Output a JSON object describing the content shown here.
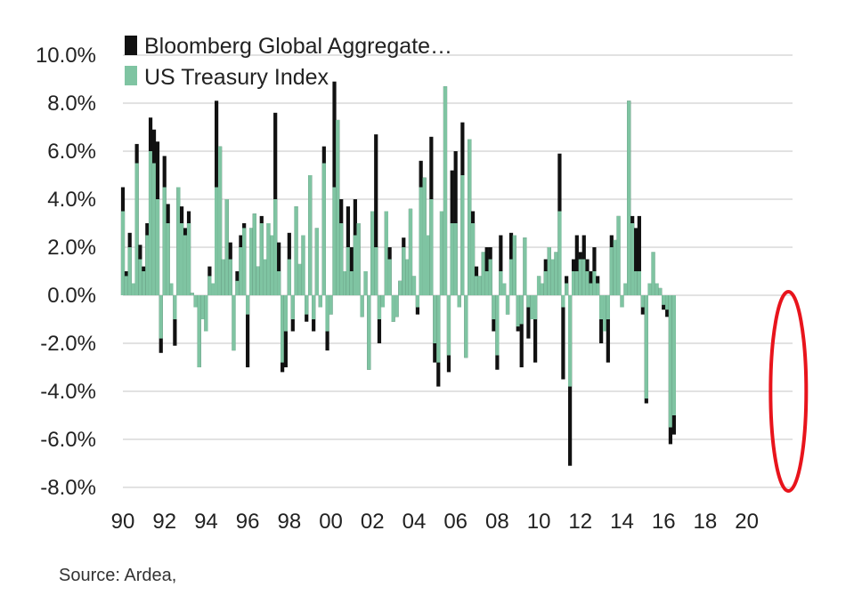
{
  "chart_data": {
    "type": "bar",
    "series": [
      {
        "name": "Bloomberg Global Aggregate…",
        "color": "#111111"
      },
      {
        "name": "US Treasury Index",
        "color": "#7fc4a2"
      }
    ],
    "legend_position": "top-left",
    "ylim": [
      -8,
      10
    ],
    "yticks": [
      10,
      8,
      6,
      4,
      2,
      0,
      -2,
      -4,
      -6,
      -8
    ],
    "ytick_labels": [
      "10.0%",
      "8.0%",
      "6.0%",
      "4.0%",
      "2.0%",
      "0.0%",
      "-2.0%",
      "-4.0%",
      "-6.0%",
      "-8.0%"
    ],
    "xlim": [
      1990,
      2022.2
    ],
    "xticks": [
      1990,
      1992,
      1994,
      1996,
      1998,
      2000,
      2002,
      2004,
      2006,
      2008,
      2010,
      2012,
      2014,
      2016,
      2018,
      2020
    ],
    "xtick_labels": [
      "90",
      "92",
      "94",
      "96",
      "98",
      "00",
      "02",
      "04",
      "06",
      "08",
      "10",
      "12",
      "14",
      "16",
      "18",
      "20"
    ],
    "grid": "horizontal",
    "highlight": {
      "type": "ellipse",
      "color": "#e8141c",
      "x_center": 2022.0,
      "y_range": [
        -8.0,
        0.0
      ]
    },
    "data": [
      [
        1990.0,
        4.5,
        3.5
      ],
      [
        1990.17,
        1.0,
        0.8
      ],
      [
        1990.33,
        2.6,
        2.0
      ],
      [
        1990.5,
        0.5,
        0.5
      ],
      [
        1990.67,
        6.3,
        5.5
      ],
      [
        1990.83,
        2.1,
        1.5
      ],
      [
        1991.0,
        1.2,
        1.0
      ],
      [
        1991.17,
        3.0,
        2.5
      ],
      [
        1991.33,
        7.4,
        6.0
      ],
      [
        1991.5,
        6.9,
        5.5
      ],
      [
        1991.67,
        6.4,
        4.0
      ],
      [
        1991.83,
        -2.4,
        -1.8
      ],
      [
        1992.0,
        5.8,
        4.5
      ],
      [
        1992.17,
        3.8,
        3.0
      ],
      [
        1992.33,
        0.5,
        0.5
      ],
      [
        1992.5,
        -2.1,
        -1.0
      ],
      [
        1992.67,
        4.5,
        4.5
      ],
      [
        1992.83,
        3.7,
        3.0
      ],
      [
        1993.0,
        2.8,
        2.5
      ],
      [
        1993.17,
        3.5,
        3.0
      ],
      [
        1993.33,
        0.1,
        0.1
      ],
      [
        1993.5,
        -0.5,
        -0.5
      ],
      [
        1993.67,
        -3.0,
        -3.0
      ],
      [
        1993.83,
        -1.0,
        -1.0
      ],
      [
        1994.0,
        -1.5,
        -1.5
      ],
      [
        1994.17,
        1.2,
        0.8
      ],
      [
        1994.33,
        0.5,
        0.5
      ],
      [
        1994.5,
        8.1,
        4.5
      ],
      [
        1994.67,
        6.2,
        6.2
      ],
      [
        1994.83,
        1.5,
        1.5
      ],
      [
        1995.0,
        4.0,
        4.0
      ],
      [
        1995.17,
        2.2,
        1.5
      ],
      [
        1995.33,
        -2.3,
        -2.3
      ],
      [
        1995.5,
        1.0,
        0.6
      ],
      [
        1995.67,
        2.5,
        2.0
      ],
      [
        1995.83,
        3.0,
        2.8
      ],
      [
        1996.0,
        -3.0,
        -0.8
      ],
      [
        1996.17,
        2.8,
        2.8
      ],
      [
        1996.33,
        3.4,
        3.4
      ],
      [
        1996.5,
        1.2,
        1.2
      ],
      [
        1996.67,
        3.3,
        3.0
      ],
      [
        1996.83,
        1.5,
        1.5
      ],
      [
        1997.0,
        3.0,
        3.0
      ],
      [
        1997.17,
        2.5,
        2.5
      ],
      [
        1997.33,
        7.6,
        4.0
      ],
      [
        1997.5,
        2.2,
        1.0
      ],
      [
        1997.67,
        -3.2,
        -2.8
      ],
      [
        1997.83,
        -3.0,
        -1.5
      ],
      [
        1998.0,
        2.6,
        1.5
      ],
      [
        1998.17,
        -1.5,
        -1.0
      ],
      [
        1998.33,
        3.7,
        3.7
      ],
      [
        1998.5,
        1.3,
        1.3
      ],
      [
        1998.67,
        2.5,
        2.5
      ],
      [
        1998.83,
        -1.1,
        -0.8
      ],
      [
        1999.0,
        5.0,
        5.0
      ],
      [
        1999.17,
        -1.5,
        -1.0
      ],
      [
        1999.33,
        2.8,
        2.8
      ],
      [
        1999.5,
        -0.5,
        -0.5
      ],
      [
        1999.67,
        6.2,
        5.5
      ],
      [
        1999.83,
        -2.3,
        -1.5
      ],
      [
        2000.0,
        -0.8,
        -0.8
      ],
      [
        2000.17,
        8.9,
        4.5
      ],
      [
        2000.33,
        7.3,
        7.3
      ],
      [
        2000.5,
        4.0,
        3.0
      ],
      [
        2000.67,
        1.0,
        1.0
      ],
      [
        2000.83,
        3.7,
        2.0
      ],
      [
        2001.0,
        2.0,
        1.0
      ],
      [
        2001.17,
        4.0,
        2.5
      ],
      [
        2001.33,
        3.0,
        3.0
      ],
      [
        2001.5,
        -0.9,
        -0.9
      ],
      [
        2001.67,
        1.0,
        1.0
      ],
      [
        2001.83,
        -3.1,
        -3.1
      ],
      [
        2002.0,
        3.5,
        3.5
      ],
      [
        2002.17,
        6.7,
        2.0
      ],
      [
        2002.33,
        -2.0,
        -1.0
      ],
      [
        2002.5,
        -0.5,
        -0.5
      ],
      [
        2002.67,
        3.5,
        3.5
      ],
      [
        2002.83,
        2.0,
        1.5
      ],
      [
        2003.0,
        -1.1,
        -1.1
      ],
      [
        2003.17,
        -0.9,
        -0.9
      ],
      [
        2003.33,
        0.6,
        0.6
      ],
      [
        2003.5,
        2.4,
        2.0
      ],
      [
        2003.67,
        1.5,
        1.5
      ],
      [
        2003.83,
        3.6,
        3.6
      ],
      [
        2004.0,
        0.8,
        0.8
      ],
      [
        2004.17,
        -0.8,
        -0.5
      ],
      [
        2004.33,
        5.6,
        4.5
      ],
      [
        2004.5,
        4.9,
        4.9
      ],
      [
        2004.67,
        2.5,
        2.5
      ],
      [
        2004.83,
        6.6,
        4.0
      ],
      [
        2005.0,
        -2.8,
        -2.0
      ],
      [
        2005.17,
        -3.8,
        -2.8
      ],
      [
        2005.33,
        3.5,
        3.5
      ],
      [
        2005.5,
        8.7,
        8.7
      ],
      [
        2005.67,
        -3.2,
        -2.5
      ],
      [
        2005.83,
        5.2,
        3.0
      ],
      [
        2006.0,
        6.0,
        3.0
      ],
      [
        2006.17,
        -0.5,
        -0.5
      ],
      [
        2006.33,
        7.2,
        5.0
      ],
      [
        2006.5,
        -2.6,
        -2.6
      ],
      [
        2006.67,
        6.5,
        6.5
      ],
      [
        2006.83,
        3.5,
        3.0
      ],
      [
        2007.0,
        1.2,
        0.8
      ],
      [
        2007.17,
        0.8,
        0.8
      ],
      [
        2007.33,
        1.8,
        1.8
      ],
      [
        2007.5,
        2.0,
        1.0
      ],
      [
        2007.67,
        2.0,
        1.5
      ],
      [
        2007.83,
        -1.5,
        -1.0
      ],
      [
        2008.0,
        -3.1,
        -2.5
      ],
      [
        2008.17,
        2.5,
        1.0
      ],
      [
        2008.33,
        0.5,
        0.5
      ],
      [
        2008.5,
        -0.8,
        -0.8
      ],
      [
        2008.67,
        2.6,
        1.5
      ],
      [
        2008.83,
        2.5,
        2.5
      ],
      [
        2009.0,
        -1.5,
        -1.3
      ],
      [
        2009.17,
        -3.0,
        -1.2
      ],
      [
        2009.33,
        2.4,
        2.4
      ],
      [
        2009.5,
        -1.8,
        -0.5
      ],
      [
        2009.67,
        -1.0,
        -1.0
      ],
      [
        2009.83,
        -2.8,
        -1.0
      ],
      [
        2010.0,
        0.8,
        0.8
      ],
      [
        2010.17,
        0.5,
        0.5
      ],
      [
        2010.33,
        1.5,
        1.0
      ],
      [
        2010.5,
        2.0,
        2.0
      ],
      [
        2010.67,
        1.5,
        1.5
      ],
      [
        2010.83,
        1.8,
        1.8
      ],
      [
        2011.0,
        5.9,
        3.5
      ],
      [
        2011.17,
        -3.5,
        -0.5
      ],
      [
        2011.33,
        0.8,
        0.5
      ],
      [
        2011.5,
        -7.1,
        -3.8
      ],
      [
        2011.67,
        1.5,
        1.0
      ],
      [
        2011.83,
        2.5,
        1.0
      ],
      [
        2012.0,
        1.8,
        1.5
      ],
      [
        2012.17,
        2.5,
        1.5
      ],
      [
        2012.33,
        1.5,
        1.0
      ],
      [
        2012.5,
        1.0,
        0.5
      ],
      [
        2012.67,
        2.0,
        1.0
      ],
      [
        2012.83,
        0.8,
        0.5
      ],
      [
        2013.0,
        -2.0,
        -1.0
      ],
      [
        2013.17,
        -1.5,
        -1.5
      ],
      [
        2013.33,
        -2.8,
        -1.0
      ],
      [
        2013.5,
        2.5,
        2.0
      ],
      [
        2013.67,
        2.3,
        2.3
      ],
      [
        2013.83,
        3.3,
        3.3
      ],
      [
        2014.0,
        -0.5,
        -0.5
      ],
      [
        2014.17,
        0.5,
        0.5
      ],
      [
        2014.33,
        8.1,
        8.1
      ],
      [
        2014.5,
        3.3,
        3.0
      ],
      [
        2014.67,
        2.8,
        1.0
      ],
      [
        2014.83,
        3.3,
        1.0
      ],
      [
        2015.0,
        -0.8,
        -0.5
      ],
      [
        2015.17,
        -4.5,
        -4.3
      ],
      [
        2015.33,
        0.5,
        0.5
      ],
      [
        2015.5,
        1.8,
        1.8
      ],
      [
        2015.67,
        0.5,
        0.5
      ],
      [
        2015.83,
        0.3,
        0.3
      ],
      [
        2016.0,
        -0.6,
        -0.4
      ],
      [
        2016.17,
        -0.9,
        -0.6
      ],
      [
        2016.33,
        -6.2,
        -5.5
      ],
      [
        2016.5,
        -5.8,
        -5.0
      ]
    ]
  },
  "source_text": "Source: Ardea,"
}
